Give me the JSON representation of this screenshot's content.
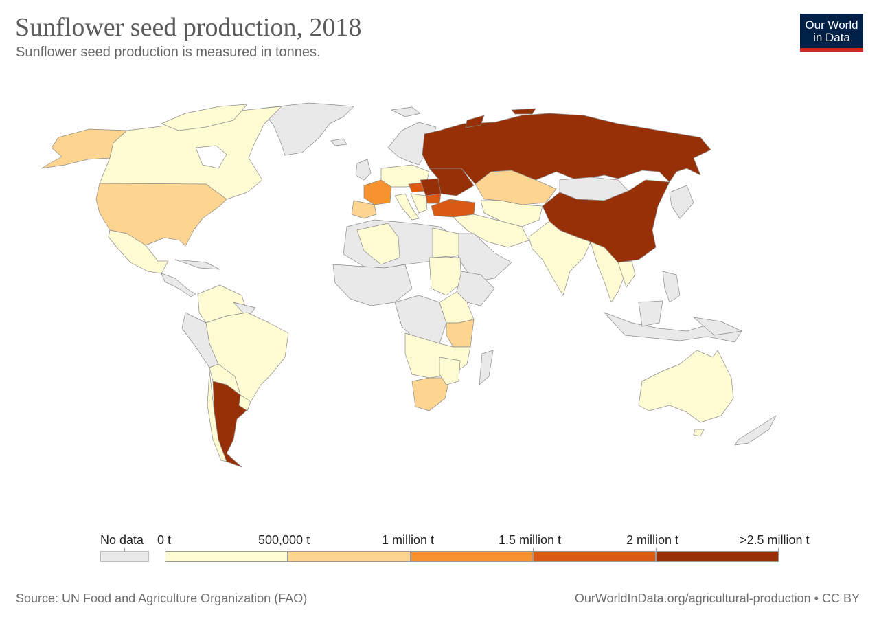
{
  "header": {
    "title": "Sunflower seed production, 2018",
    "subtitle": "Sunflower seed production is measured in tonnes."
  },
  "logo": {
    "line1": "Our World",
    "line2": "in Data"
  },
  "legend": {
    "no_data_label": "No data",
    "bins": [
      {
        "label": "0 t",
        "color": "#fffbd3"
      },
      {
        "label": "500,000 t",
        "color": "#fdd490"
      },
      {
        "label": "1 million t",
        "color": "#f69330"
      },
      {
        "label": "1.5 million t",
        "color": "#da5a13"
      },
      {
        "label": "2 million t",
        "color": "#983007"
      }
    ],
    "last_label": ">2.5 million t",
    "no_data_color": "#e9e9e9"
  },
  "colors": {
    "low": "#fffbd3",
    "mid_low": "#fdd490",
    "mid": "#f69330",
    "high": "#da5a13",
    "top": "#983007",
    "no_data": "#e9e9e9"
  },
  "footer": {
    "source": "Source: UN Food and Agriculture Organization (FAO)",
    "credit": "OurWorldInData.org/agricultural-production • CC BY"
  }
}
